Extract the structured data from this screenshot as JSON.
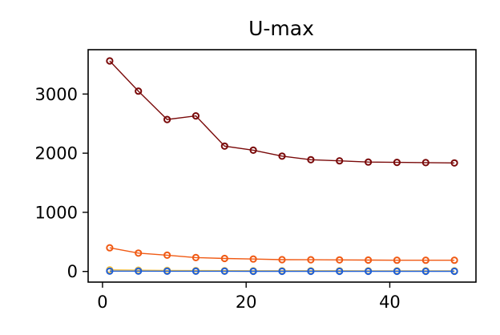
{
  "chart_data": {
    "type": "line",
    "title": "U-max",
    "xlabel": "",
    "ylabel": "",
    "xlim": [
      -2,
      52
    ],
    "ylim": [
      -180,
      3750
    ],
    "xticks": [
      0,
      20,
      40
    ],
    "yticks": [
      0,
      1000,
      2000,
      3000
    ],
    "grid": false,
    "x": [
      1,
      5,
      9,
      13,
      17,
      21,
      25,
      29,
      33,
      37,
      41,
      45,
      49
    ],
    "series": [
      {
        "color": "#7a0a0a",
        "values": [
          3560,
          3050,
          2570,
          2630,
          2120,
          2050,
          1950,
          1890,
          1870,
          1850,
          1845,
          1840,
          1835
        ]
      },
      {
        "color": "#f05a14",
        "values": [
          400,
          310,
          275,
          235,
          220,
          210,
          200,
          198,
          196,
          193,
          190,
          190,
          190
        ]
      },
      {
        "color": "#f5c242",
        "values": [
          28,
          22,
          18,
          15,
          14,
          13,
          12,
          12,
          12,
          11,
          11,
          11,
          11
        ]
      },
      {
        "color": "#1f5fd6",
        "values": [
          6,
          5,
          4,
          4,
          4,
          3,
          3,
          3,
          3,
          3,
          3,
          3,
          3
        ]
      }
    ]
  }
}
